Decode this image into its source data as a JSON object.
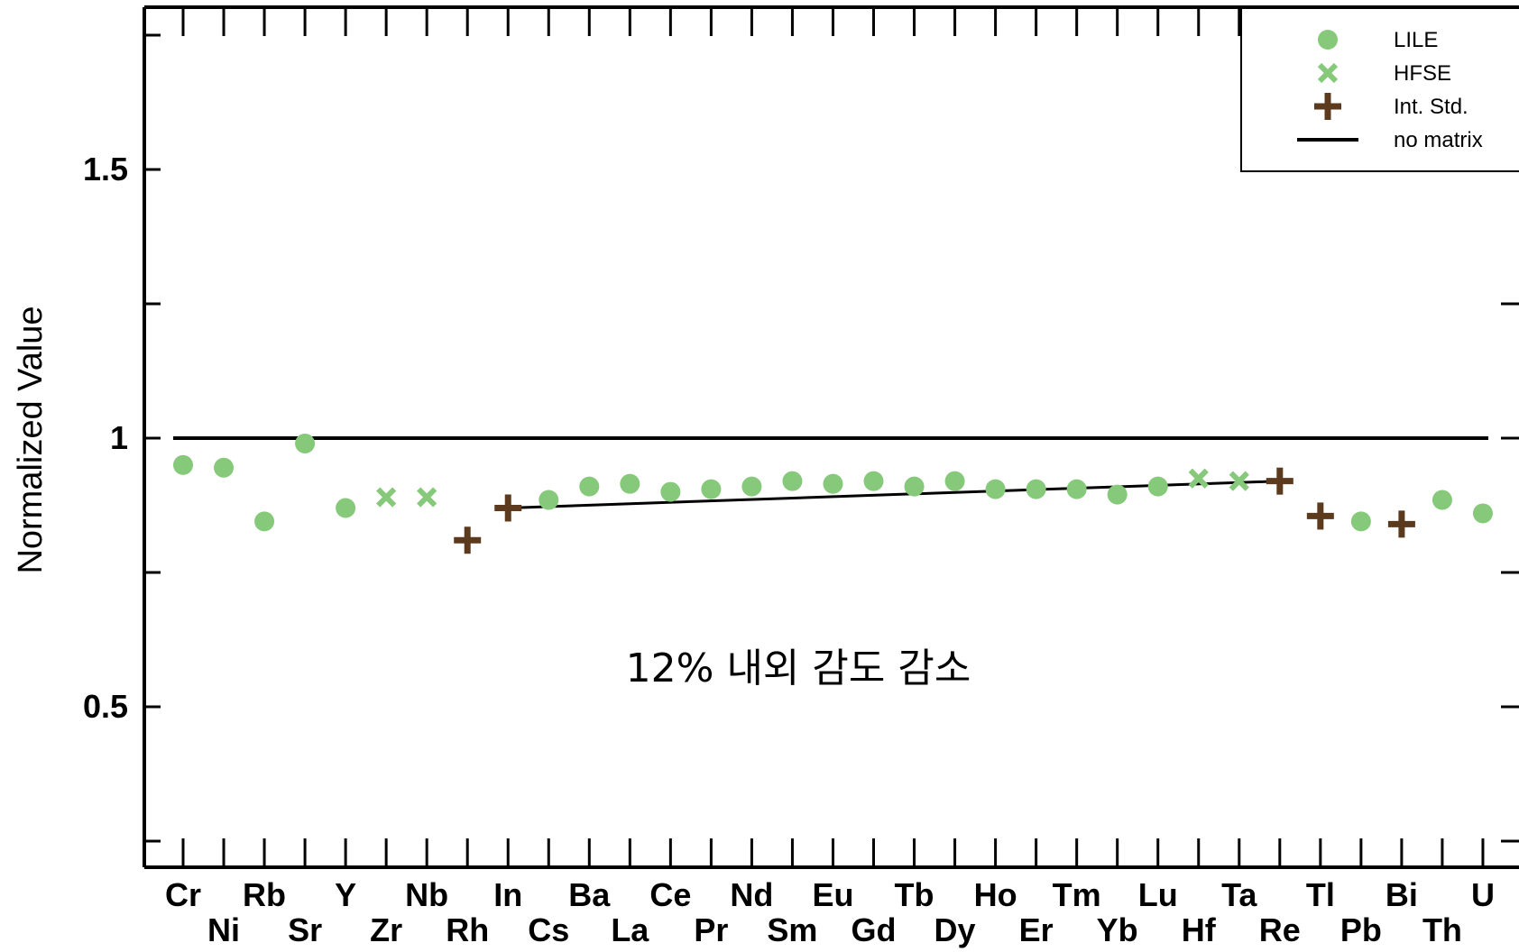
{
  "chart_data": {
    "type": "scatter",
    "ylabel": "Normalized Value",
    "xlabel": "",
    "ylim": [
      0.25,
      1.8
    ],
    "yticks": [
      0.5,
      1,
      1.5
    ],
    "ytick_labels": [
      "0.5",
      "1",
      "1.5"
    ],
    "categories": [
      "Cr",
      "Ni",
      "Rb",
      "Sr",
      "Y",
      "Zr",
      "Nb",
      "Rh",
      "In",
      "Cs",
      "Ba",
      "La",
      "Ce",
      "Pr",
      "Nd",
      "Sm",
      "Eu",
      "Gd",
      "Tb",
      "Dy",
      "Ho",
      "Er",
      "Tm",
      "Yb",
      "Lu",
      "Hf",
      "Ta",
      "Re",
      "Tl",
      "Pb",
      "Bi",
      "Th",
      "U"
    ],
    "series": [
      {
        "name": "LILE",
        "marker": "circle",
        "color": "#86c97a",
        "points": [
          {
            "x": "Cr",
            "y": 0.95
          },
          {
            "x": "Ni",
            "y": 0.945
          },
          {
            "x": "Rb",
            "y": 0.845
          },
          {
            "x": "Sr",
            "y": 0.99
          },
          {
            "x": "Y",
            "y": 0.87
          },
          {
            "x": "Cs",
            "y": 0.885
          },
          {
            "x": "Ba",
            "y": 0.91
          },
          {
            "x": "La",
            "y": 0.915
          },
          {
            "x": "Ce",
            "y": 0.9
          },
          {
            "x": "Pr",
            "y": 0.905
          },
          {
            "x": "Nd",
            "y": 0.91
          },
          {
            "x": "Sm",
            "y": 0.92
          },
          {
            "x": "Eu",
            "y": 0.915
          },
          {
            "x": "Gd",
            "y": 0.92
          },
          {
            "x": "Tb",
            "y": 0.91
          },
          {
            "x": "Dy",
            "y": 0.92
          },
          {
            "x": "Ho",
            "y": 0.905
          },
          {
            "x": "Er",
            "y": 0.905
          },
          {
            "x": "Tm",
            "y": 0.905
          },
          {
            "x": "Yb",
            "y": 0.895
          },
          {
            "x": "Lu",
            "y": 0.91
          },
          {
            "x": "Pb",
            "y": 0.845
          },
          {
            "x": "Th",
            "y": 0.885
          },
          {
            "x": "U",
            "y": 0.86
          }
        ]
      },
      {
        "name": "HFSE",
        "marker": "x",
        "color": "#86c97a",
        "points": [
          {
            "x": "Zr",
            "y": 0.89
          },
          {
            "x": "Nb",
            "y": 0.89
          },
          {
            "x": "Hf",
            "y": 0.925
          },
          {
            "x": "Ta",
            "y": 0.92
          }
        ]
      },
      {
        "name": "Int. Std.",
        "marker": "plus",
        "color": "#5c3a1e",
        "points": [
          {
            "x": "Rh",
            "y": 0.81
          },
          {
            "x": "In",
            "y": 0.87
          },
          {
            "x": "Re",
            "y": 0.92
          },
          {
            "x": "Tl",
            "y": 0.855
          },
          {
            "x": "Bi",
            "y": 0.84
          }
        ]
      },
      {
        "name": "no matrix",
        "marker": "line",
        "color": "#000000",
        "y": 1.0
      }
    ],
    "trend_line": {
      "from": {
        "x": "In",
        "y": 0.87
      },
      "to": {
        "x": "Re",
        "y": 0.92
      },
      "color": "#000000"
    },
    "annotation": "12% 내외 감도 감소",
    "legend_position": "top-right",
    "grid": false
  }
}
